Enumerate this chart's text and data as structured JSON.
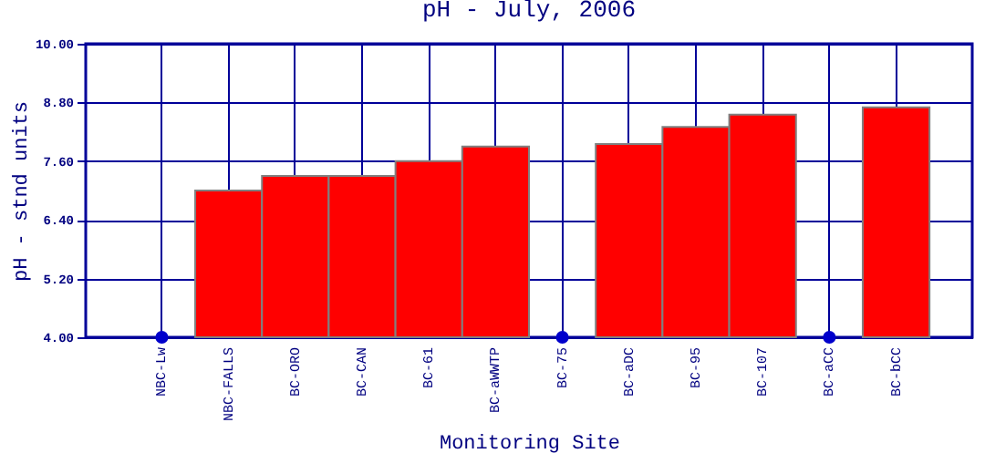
{
  "chart_data": {
    "type": "bar",
    "title": "pH - July, 2006",
    "xlabel": "Monitoring Site",
    "ylabel": "pH - stnd units",
    "categories": [
      "NBC-Lw",
      "NBC-FALLS",
      "BC-ORO",
      "BC-CAN",
      "BC-61",
      "BC-aWWTP",
      "BC-75",
      "BC-aDC",
      "BC-95",
      "BC-107",
      "BC-aCC",
      "BC-bCC"
    ],
    "series": [
      {
        "type": "bar",
        "color": "#ff0000",
        "values": [
          null,
          7.0,
          7.3,
          7.3,
          7.6,
          7.9,
          null,
          7.95,
          8.3,
          8.55,
          null,
          8.7
        ]
      },
      {
        "type": "scatter",
        "color": "#0000cc",
        "marker": "circle",
        "x": [
          "NBC-Lw",
          "BC-75",
          "BC-aCC"
        ],
        "values": [
          4.0,
          4.0,
          4.0
        ]
      }
    ],
    "ylim": [
      4,
      10
    ],
    "yticks": [
      {
        "value": 4,
        "label": "4.00"
      },
      {
        "value": 5.2,
        "label": "5.20"
      },
      {
        "value": 6.4,
        "label": "6.40"
      },
      {
        "value": 7.6,
        "label": "7.60"
      },
      {
        "value": 8.8,
        "label": "8.80"
      },
      {
        "value": 10,
        "label": "10.00"
      }
    ],
    "grid": true
  }
}
